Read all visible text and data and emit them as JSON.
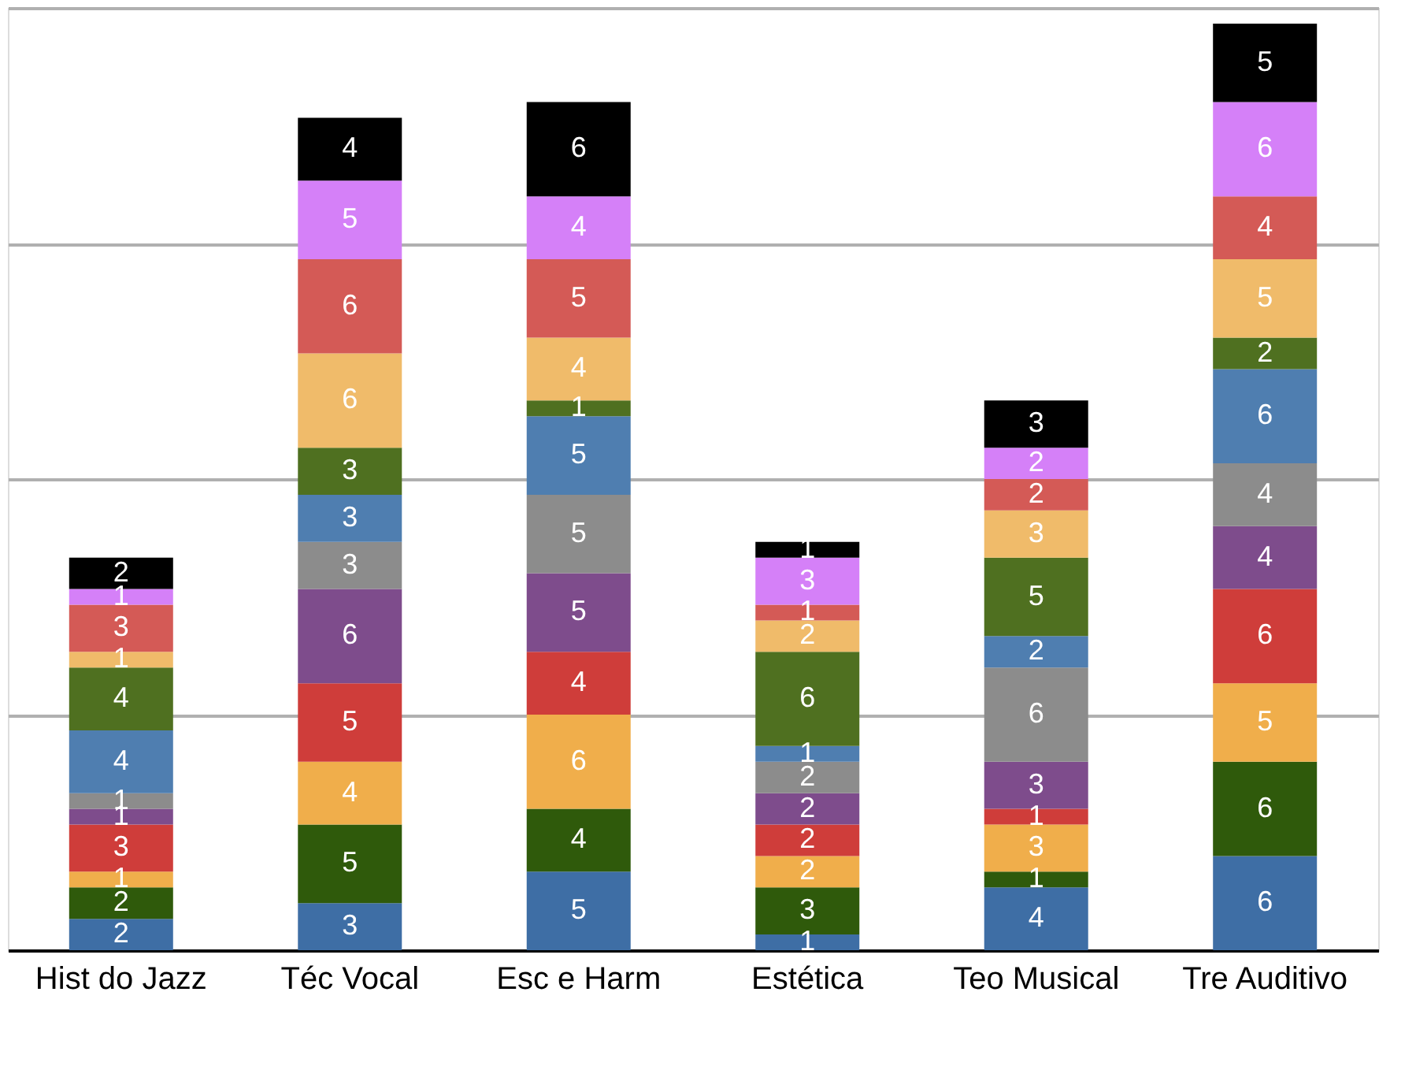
{
  "chart_data": {
    "type": "bar",
    "stacked": true,
    "data_labels": true,
    "grid": "y",
    "tick_labels": "x",
    "categories": [
      "Hist do Jazz",
      "Téc Vocal",
      "Esc e Harm",
      "Estética",
      "Teo Musical",
      "Tre Auditivo"
    ],
    "ylim": [
      0,
      60
    ],
    "yticks": [
      0,
      15,
      30,
      45,
      60
    ],
    "series": [
      {
        "color": "#3e6ea5",
        "values": [
          2,
          3,
          5,
          1,
          4,
          6
        ]
      },
      {
        "color": "#2f5a0b",
        "values": [
          2,
          5,
          4,
          3,
          1,
          6
        ]
      },
      {
        "color": "#f0ae4b",
        "values": [
          1,
          4,
          6,
          2,
          3,
          5
        ]
      },
      {
        "color": "#cf3d3a",
        "values": [
          3,
          5,
          4,
          2,
          1,
          6
        ]
      },
      {
        "color": "#7e4c8c",
        "values": [
          1,
          6,
          5,
          2,
          3,
          4
        ]
      },
      {
        "color": "#8c8c8c",
        "values": [
          1,
          3,
          5,
          2,
          6,
          4
        ]
      },
      {
        "color": "#4f7eb0",
        "values": [
          4,
          3,
          5,
          1,
          2,
          6
        ]
      },
      {
        "color": "#4f7020",
        "values": [
          4,
          3,
          1,
          6,
          5,
          2
        ]
      },
      {
        "color": "#f0bb6a",
        "values": [
          1,
          6,
          4,
          2,
          3,
          5
        ]
      },
      {
        "color": "#d45a56",
        "values": [
          3,
          6,
          5,
          1,
          2,
          4
        ]
      },
      {
        "color": "#d580f8",
        "values": [
          1,
          5,
          4,
          3,
          2,
          6
        ]
      },
      {
        "color": "#000000",
        "values": [
          2,
          4,
          6,
          1,
          3,
          5
        ]
      }
    ]
  }
}
